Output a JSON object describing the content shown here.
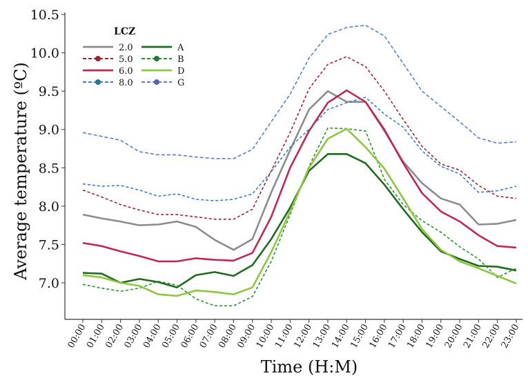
{
  "chart_data": {
    "type": "line",
    "title": "",
    "xlabel": "Time (H:M)",
    "ylabel": "Average temperature (ºC)",
    "ylim": [
      6.5,
      10.5
    ],
    "yticks": [
      "7.0",
      "7.5",
      "8.0",
      "8.5",
      "9.0",
      "9.5",
      "10.0",
      "10.5"
    ],
    "grid": false,
    "legend_title": "LCZ",
    "legend_position": "top-left",
    "categories": [
      "00:00",
      "01:00",
      "02:00",
      "03:00",
      "04:00",
      "05:00",
      "06:00",
      "07:00",
      "08:00",
      "09:00",
      "10:00",
      "11:00",
      "12:00",
      "13:00",
      "14:00",
      "15:00",
      "16:00",
      "17:00",
      "18:00",
      "19:00",
      "20:00",
      "21:00",
      "22:00",
      "23:00"
    ],
    "series": [
      {
        "name": "2.0",
        "color": "#8c8c8c",
        "style": "solid",
        "values": [
          7.89,
          7.84,
          7.8,
          7.75,
          7.76,
          7.8,
          7.73,
          7.56,
          7.43,
          7.57,
          8.18,
          8.73,
          9.26,
          9.5,
          9.36,
          9.36,
          8.98,
          8.58,
          8.3,
          8.1,
          8.02,
          7.76,
          7.77,
          7.82
        ]
      },
      {
        "name": "5.0",
        "color": "#9b2335",
        "style": "dashed",
        "values": [
          8.21,
          8.12,
          8.02,
          7.95,
          7.89,
          7.89,
          7.86,
          7.83,
          7.83,
          7.96,
          8.46,
          8.96,
          9.53,
          9.85,
          9.95,
          9.82,
          9.5,
          9.13,
          8.78,
          8.55,
          8.47,
          8.27,
          8.13,
          8.1
        ]
      },
      {
        "name": "6.0",
        "color": "#c0284f",
        "style": "solid",
        "values": [
          7.52,
          7.48,
          7.41,
          7.35,
          7.28,
          7.28,
          7.32,
          7.3,
          7.29,
          7.39,
          7.86,
          8.5,
          8.98,
          9.35,
          9.51,
          9.36,
          9.0,
          8.56,
          8.17,
          7.93,
          7.8,
          7.62,
          7.48,
          7.46
        ]
      },
      {
        "name": "8.0",
        "color": "#3a7cc2",
        "style": "dashed",
        "values": [
          8.29,
          8.26,
          8.27,
          8.21,
          8.13,
          8.16,
          8.09,
          8.07,
          8.09,
          8.16,
          8.45,
          8.77,
          9.0,
          9.26,
          9.35,
          9.42,
          9.2,
          9.03,
          8.72,
          8.52,
          8.42,
          8.18,
          8.2,
          8.26
        ]
      },
      {
        "name": "G",
        "color": "#5b7fc4",
        "style": "dashed",
        "values": [
          8.96,
          8.91,
          8.86,
          8.71,
          8.67,
          8.67,
          8.64,
          8.62,
          8.62,
          8.74,
          9.1,
          9.46,
          9.93,
          10.24,
          10.33,
          10.36,
          10.22,
          9.86,
          9.5,
          9.3,
          9.1,
          8.89,
          8.82,
          8.84
        ]
      },
      {
        "name": "A",
        "color": "#1e6b1e",
        "style": "solid",
        "values": [
          7.13,
          7.12,
          7.0,
          7.05,
          7.01,
          6.94,
          7.1,
          7.14,
          7.09,
          7.23,
          7.57,
          7.98,
          8.46,
          8.68,
          8.68,
          8.56,
          8.28,
          7.96,
          7.66,
          7.41,
          7.31,
          7.22,
          7.21,
          7.16
        ]
      },
      {
        "name": "B",
        "color": "#2e8b2e",
        "style": "dashed",
        "values": [
          6.98,
          6.93,
          6.89,
          6.93,
          7.02,
          6.97,
          6.79,
          6.7,
          6.7,
          6.82,
          7.28,
          7.89,
          8.52,
          9.02,
          9.01,
          8.98,
          8.35,
          8.02,
          7.81,
          7.66,
          7.47,
          7.31,
          7.07,
          7.19
        ]
      },
      {
        "name": "D",
        "color": "#8dc63f",
        "style": "solid",
        "values": [
          7.1,
          7.07,
          7.0,
          6.96,
          6.85,
          6.83,
          6.9,
          6.88,
          6.85,
          6.94,
          7.4,
          7.93,
          8.5,
          8.88,
          9.01,
          8.77,
          8.49,
          8.1,
          7.7,
          7.43,
          7.28,
          7.19,
          7.09,
          6.99
        ]
      }
    ],
    "legend_markers": {
      "5.0": "#9b2335",
      "8.0": "#1f7a8c",
      "B": "#1e7a3a",
      "G": "#5a5fb0"
    }
  }
}
